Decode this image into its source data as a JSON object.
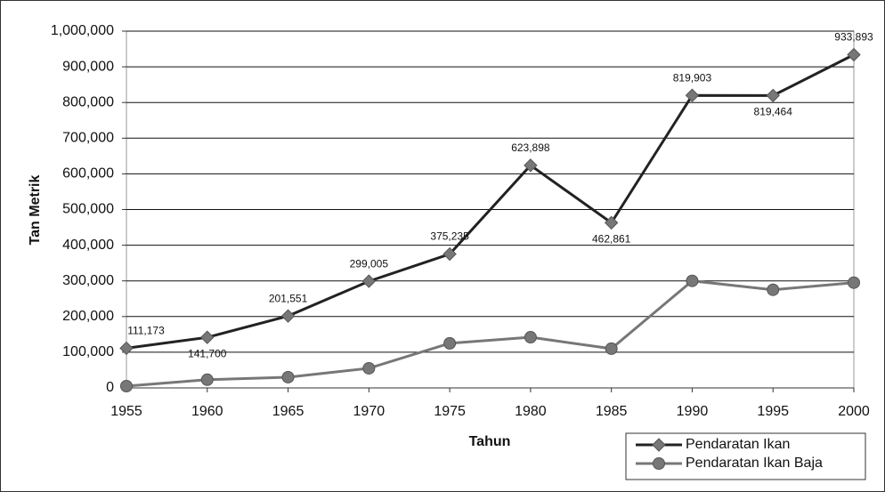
{
  "chart_data": {
    "type": "line",
    "x_label": "Tahun",
    "y_label": "Tan Metrik",
    "x": [
      1955,
      1960,
      1965,
      1970,
      1975,
      1980,
      1985,
      1990,
      1995,
      2000
    ],
    "xlim": [
      1955,
      2000
    ],
    "xticks": [
      1955,
      1960,
      1965,
      1970,
      1975,
      1980,
      1985,
      1990,
      1995,
      2000
    ],
    "ylim": [
      0,
      1000000
    ],
    "yticks": [
      0,
      {
        "value": 100000,
        "label": "100,000"
      },
      {
        "value": 200000,
        "label": "200,000"
      },
      {
        "value": 300000,
        "label": "300,000"
      },
      {
        "value": 400000,
        "label": "400,000"
      },
      {
        "value": 500000,
        "label": "500,000"
      },
      {
        "value": 600000,
        "label": "600,000"
      },
      {
        "value": 700000,
        "label": "700,000"
      },
      {
        "value": 800000,
        "label": "800,000"
      },
      {
        "value": 900000,
        "label": "900,000"
      },
      {
        "value": 1000000,
        "label": "1,000,000"
      }
    ],
    "grid": true,
    "legend": "bottom-right",
    "series": [
      {
        "name": "Pendaratan Ikan",
        "color": "#222222",
        "marker": "diamond",
        "values": [
          111173,
          141700,
          201551,
          299005,
          375235,
          623898,
          462861,
          819903,
          819464,
          933893
        ],
        "value_labels": [
          "111,173",
          "141,700",
          "201,551",
          "299,005",
          "375,235",
          "623,898",
          "462,861",
          "819,903",
          "819,464",
          "933,893"
        ]
      },
      {
        "name": "Pendaratan Ikan Baja",
        "color": "#777777",
        "marker": "circle",
        "values": [
          5000,
          23000,
          30000,
          55000,
          125000,
          142000,
          110000,
          300000,
          275000,
          295000
        ]
      }
    ]
  }
}
